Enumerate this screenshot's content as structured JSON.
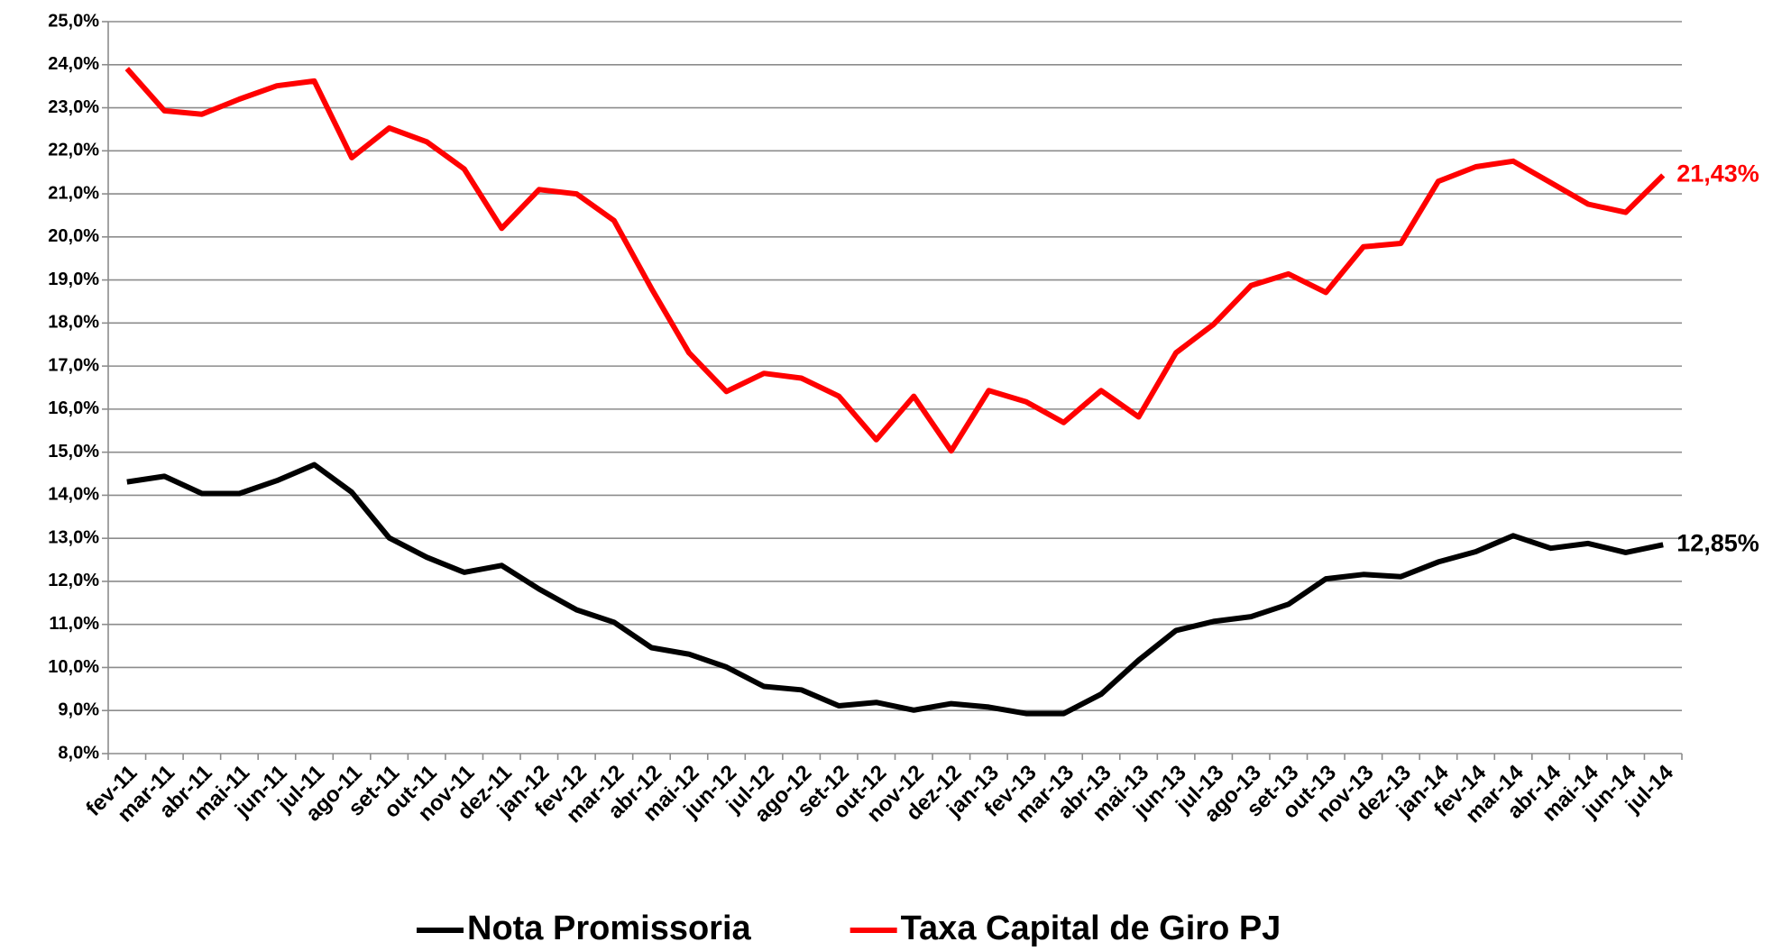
{
  "chart_data": {
    "type": "line",
    "categories": [
      "fev-11",
      "mar-11",
      "abr-11",
      "mai-11",
      "jun-11",
      "jul-11",
      "ago-11",
      "set-11",
      "out-11",
      "nov-11",
      "dez-11",
      "jan-12",
      "fev-12",
      "mar-12",
      "abr-12",
      "mai-12",
      "jun-12",
      "jul-12",
      "ago-12",
      "set-12",
      "out-12",
      "nov-12",
      "dez-12",
      "jan-13",
      "fev-13",
      "mar-13",
      "abr-13",
      "mai-13",
      "jun-13",
      "jul-13",
      "ago-13",
      "set-13",
      "out-13",
      "nov-13",
      "dez-13",
      "jan-14",
      "fev-14",
      "mar-14",
      "abr-14",
      "mai-14",
      "jun-14",
      "jul-14"
    ],
    "series": [
      {
        "name": "Nota Promissoria",
        "color": "#000000",
        "values": [
          14.31,
          14.44,
          14.04,
          14.04,
          14.34,
          14.71,
          14.07,
          13.01,
          12.56,
          12.21,
          12.37,
          11.82,
          11.34,
          11.05,
          10.46,
          10.31,
          10.01,
          9.56,
          9.48,
          9.11,
          9.19,
          9.01,
          9.16,
          9.08,
          8.93,
          8.93,
          9.38,
          10.17,
          10.86,
          11.07,
          11.18,
          11.47,
          12.06,
          12.16,
          12.11,
          12.45,
          12.69,
          13.06,
          12.77,
          12.88,
          12.67,
          12.85
        ],
        "value_labels": [
          null,
          null,
          null,
          null,
          null,
          null,
          null,
          null,
          null,
          null,
          null,
          null,
          null,
          null,
          null,
          null,
          null,
          null,
          null,
          null,
          null,
          null,
          null,
          null,
          null,
          null,
          null,
          null,
          null,
          null,
          null,
          null,
          null,
          null,
          null,
          null,
          null,
          null,
          null,
          null,
          null,
          "12,85%"
        ]
      },
      {
        "name": "Taxa Capital de Giro PJ",
        "color": "#ff0000",
        "values": [
          23.91,
          22.93,
          22.85,
          23.2,
          23.51,
          23.62,
          21.84,
          22.53,
          22.21,
          21.58,
          20.2,
          21.1,
          21.0,
          20.38,
          18.8,
          17.31,
          16.41,
          16.83,
          16.72,
          16.3,
          15.29,
          16.3,
          15.03,
          16.43,
          16.17,
          15.69,
          16.43,
          15.82,
          17.31,
          17.97,
          18.87,
          19.14,
          18.71,
          19.77,
          19.85,
          21.29,
          21.63,
          21.76,
          21.26,
          20.76,
          20.57,
          21.43
        ],
        "value_labels": [
          null,
          null,
          null,
          null,
          null,
          null,
          null,
          null,
          null,
          null,
          null,
          null,
          null,
          null,
          null,
          null,
          null,
          null,
          null,
          null,
          null,
          null,
          null,
          null,
          null,
          null,
          null,
          null,
          null,
          null,
          null,
          null,
          null,
          null,
          null,
          null,
          null,
          null,
          null,
          null,
          null,
          "21,43%"
        ]
      }
    ],
    "ylim": [
      8,
      25
    ],
    "yticks": [
      {
        "value": 8,
        "label": "8,0%"
      },
      {
        "value": 9,
        "label": "9,0%"
      },
      {
        "value": 10,
        "label": "10,0%"
      },
      {
        "value": 11,
        "label": "11,0%"
      },
      {
        "value": 12,
        "label": "12,0%"
      },
      {
        "value": 13,
        "label": "13,0%"
      },
      {
        "value": 14,
        "label": "14,0%"
      },
      {
        "value": 15,
        "label": "15,0%"
      },
      {
        "value": 16,
        "label": "16,0%"
      },
      {
        "value": 17,
        "label": "17,0%"
      },
      {
        "value": 18,
        "label": "18,0%"
      },
      {
        "value": 19,
        "label": "19,0%"
      },
      {
        "value": 20,
        "label": "20,0%"
      },
      {
        "value": 21,
        "label": "21,0%"
      },
      {
        "value": 22,
        "label": "22,0%"
      },
      {
        "value": 23,
        "label": "23,0%"
      },
      {
        "value": 24,
        "label": "24,0%"
      },
      {
        "value": 25,
        "label": "25,0%"
      }
    ],
    "grid": true,
    "legend": "bottom"
  }
}
